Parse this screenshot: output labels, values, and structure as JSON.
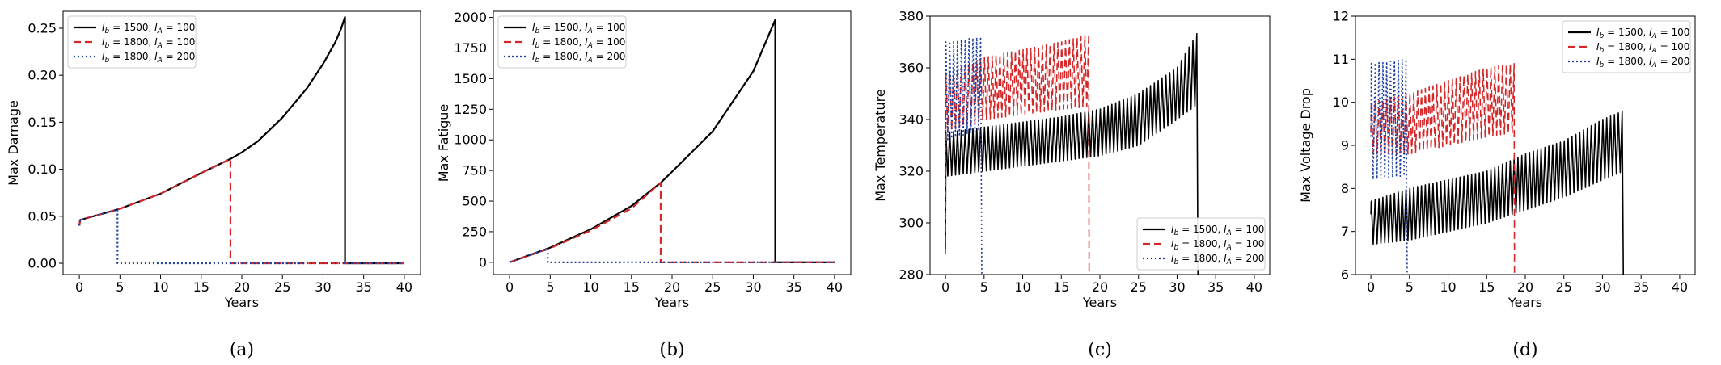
{
  "chart_data": [
    {
      "type": "line",
      "caption": "(a)",
      "xlabel": "Years",
      "ylabel": "Max Damage",
      "xlim": [
        -2,
        42
      ],
      "ylim": [
        -0.012,
        0.268
      ],
      "xticks": [
        0,
        5,
        10,
        15,
        20,
        25,
        30,
        35,
        40
      ],
      "xticklabels": [
        "0",
        "5",
        "10",
        "15",
        "20",
        "25",
        "30",
        "35",
        "40"
      ],
      "yticks": [
        0,
        0.05,
        0.1,
        0.15,
        0.2,
        0.25
      ],
      "yticklabels": [
        "0.00",
        "0.05",
        "0.10",
        "0.15",
        "0.20",
        "0.25"
      ],
      "legend_position": "upper-left",
      "series": [
        {
          "name": "I_b = 1500, I_A = 100",
          "color": "#000000",
          "dash": "solid",
          "x": [
            0,
            0.1,
            5,
            10,
            15,
            18.6,
            20,
            22,
            25,
            28,
            30,
            31.5,
            32.2,
            32.7,
            32.7,
            40
          ],
          "y": [
            0.04,
            0.046,
            0.058,
            0.074,
            0.096,
            0.111,
            0.118,
            0.13,
            0.155,
            0.186,
            0.212,
            0.235,
            0.249,
            0.262,
            0,
            0
          ]
        },
        {
          "name": "I_b = 1800, I_A = 100",
          "color": "#d62728",
          "dash": "dashed",
          "x": [
            0,
            0.1,
            5,
            10,
            15,
            18.6,
            18.6,
            40
          ],
          "y": [
            0.04,
            0.046,
            0.058,
            0.074,
            0.096,
            0.111,
            0,
            0
          ]
        },
        {
          "name": "I_b = 1800, I_A = 200",
          "color": "#1f3f9f",
          "dash": "dotted",
          "x": [
            0,
            0.1,
            4.7,
            4.7,
            40
          ],
          "y": [
            0.04,
            0.046,
            0.057,
            0,
            0
          ]
        }
      ]
    },
    {
      "type": "line",
      "caption": "(b)",
      "xlabel": "Years",
      "ylabel": "Max Fatigue",
      "xlim": [
        -2,
        42
      ],
      "ylim": [
        -100,
        2050
      ],
      "xticks": [
        0,
        5,
        10,
        15,
        20,
        25,
        30,
        35,
        40
      ],
      "xticklabels": [
        "0",
        "5",
        "10",
        "15",
        "20",
        "25",
        "30",
        "35",
        "40"
      ],
      "yticks": [
        0,
        250,
        500,
        750,
        1000,
        1250,
        1500,
        1750,
        2000
      ],
      "yticklabels": [
        "0",
        "250",
        "500",
        "750",
        "1000",
        "1250",
        "1500",
        "1750",
        "2000"
      ],
      "legend_position": "upper-left",
      "series": [
        {
          "name": "I_b = 1500, I_A = 100",
          "color": "#000000",
          "dash": "solid",
          "x": [
            0,
            5,
            10,
            15,
            18.6,
            20,
            25,
            30,
            32.7,
            32.7,
            40
          ],
          "y": [
            0,
            120,
            270,
            460,
            650,
            740,
            1070,
            1560,
            1980,
            0,
            0
          ]
        },
        {
          "name": "I_b = 1800, I_A = 100",
          "color": "#d62728",
          "dash": "dashed",
          "x": [
            0,
            5,
            10,
            15,
            18.6,
            18.6,
            40
          ],
          "y": [
            0,
            115,
            260,
            440,
            650,
            0,
            0
          ]
        },
        {
          "name": "I_b = 1800, I_A = 200",
          "color": "#1f3f9f",
          "dash": "dotted",
          "x": [
            0,
            4.7,
            4.7,
            40
          ],
          "y": [
            0,
            110,
            0,
            0
          ]
        }
      ]
    },
    {
      "type": "line",
      "caption": "(c)",
      "xlabel": "Years",
      "ylabel": "Max Temperature",
      "xlim": [
        -2,
        42
      ],
      "ylim": [
        280,
        380
      ],
      "xticks": [
        0,
        5,
        10,
        15,
        20,
        25,
        30,
        35,
        40
      ],
      "xticklabels": [
        "0",
        "5",
        "10",
        "15",
        "20",
        "25",
        "30",
        "35",
        "40"
      ],
      "yticks": [
        280,
        300,
        320,
        340,
        360,
        380
      ],
      "yticklabels": [
        "280",
        "300",
        "320",
        "340",
        "360",
        "380"
      ],
      "legend_position": "lower-right",
      "series": [
        {
          "name": "I_b = 1500, I_A = 100",
          "color": "#000000",
          "dash": "solid",
          "oscillating": true,
          "x_end": 32.7,
          "period": 0.5,
          "start_value": 290,
          "band_x": [
            0,
            5,
            10,
            15,
            20,
            25,
            30,
            32.7
          ],
          "band_low": [
            318,
            320,
            322,
            324,
            326,
            330,
            340,
            346
          ],
          "band_high": [
            335,
            337,
            339,
            341,
            344,
            350,
            360,
            374
          ],
          "drop_to": 280
        },
        {
          "name": "I_b = 1800, I_A = 100",
          "color": "#d62728",
          "dash": "dashed",
          "oscillating": true,
          "x_end": 18.6,
          "period": 0.5,
          "start_value": 288,
          "band_x": [
            0,
            5,
            10,
            15,
            18.6
          ],
          "band_low": [
            335,
            340,
            342,
            344,
            345
          ],
          "band_high": [
            358,
            364,
            367,
            370,
            373
          ],
          "drop_to": 280
        },
        {
          "name": "I_b = 1800, I_A = 200",
          "color": "#1f3f9f",
          "dash": "dotted",
          "oscillating": true,
          "x_end": 4.7,
          "period": 0.5,
          "start_value": 290,
          "band_x": [
            0,
            4.7
          ],
          "band_low": [
            332,
            336
          ],
          "band_high": [
            370,
            372
          ],
          "drop_to": 280
        }
      ]
    },
    {
      "type": "line",
      "caption": "(d)",
      "xlabel": "Years",
      "ylabel": "Max Voltage Drop",
      "xlim": [
        -2,
        42
      ],
      "ylim": [
        6,
        12
      ],
      "xticks": [
        0,
        5,
        10,
        15,
        20,
        25,
        30,
        35,
        40
      ],
      "xticklabels": [
        "0",
        "5",
        "10",
        "15",
        "20",
        "25",
        "30",
        "35",
        "40"
      ],
      "yticks": [
        6,
        7,
        8,
        9,
        10,
        11,
        12
      ],
      "yticklabels": [
        "6",
        "7",
        "8",
        "9",
        "10",
        "11",
        "12"
      ],
      "legend_position": "upper-right",
      "series": [
        {
          "name": "I_b = 1500, I_A = 100",
          "color": "#000000",
          "dash": "solid",
          "oscillating": true,
          "x_end": 32.7,
          "period": 0.5,
          "start_value": 7.4,
          "band_x": [
            0,
            5,
            10,
            15,
            20,
            25,
            30,
            32.7
          ],
          "band_low": [
            6.7,
            6.8,
            7.0,
            7.2,
            7.5,
            7.8,
            8.2,
            8.4
          ],
          "band_high": [
            7.7,
            8.0,
            8.2,
            8.4,
            8.8,
            9.1,
            9.6,
            9.8
          ],
          "drop_to": 6
        },
        {
          "name": "I_b = 1800, I_A = 100",
          "color": "#d62728",
          "dash": "dashed",
          "oscillating": true,
          "x_end": 18.6,
          "period": 0.5,
          "start_value": 9.3,
          "band_x": [
            0,
            5,
            10,
            15,
            18.6
          ],
          "band_low": [
            8.8,
            8.8,
            9.0,
            9.2,
            9.3
          ],
          "band_high": [
            10.0,
            10.2,
            10.5,
            10.8,
            10.9
          ],
          "drop_to": 6
        },
        {
          "name": "I_b = 1800, I_A = 200",
          "color": "#1f3f9f",
          "dash": "dotted",
          "oscillating": true,
          "x_end": 4.7,
          "period": 0.5,
          "start_value": 9.2,
          "band_x": [
            0,
            4.7
          ],
          "band_low": [
            8.2,
            8.3
          ],
          "band_high": [
            10.9,
            11.0
          ],
          "drop_to": 6
        }
      ]
    }
  ]
}
